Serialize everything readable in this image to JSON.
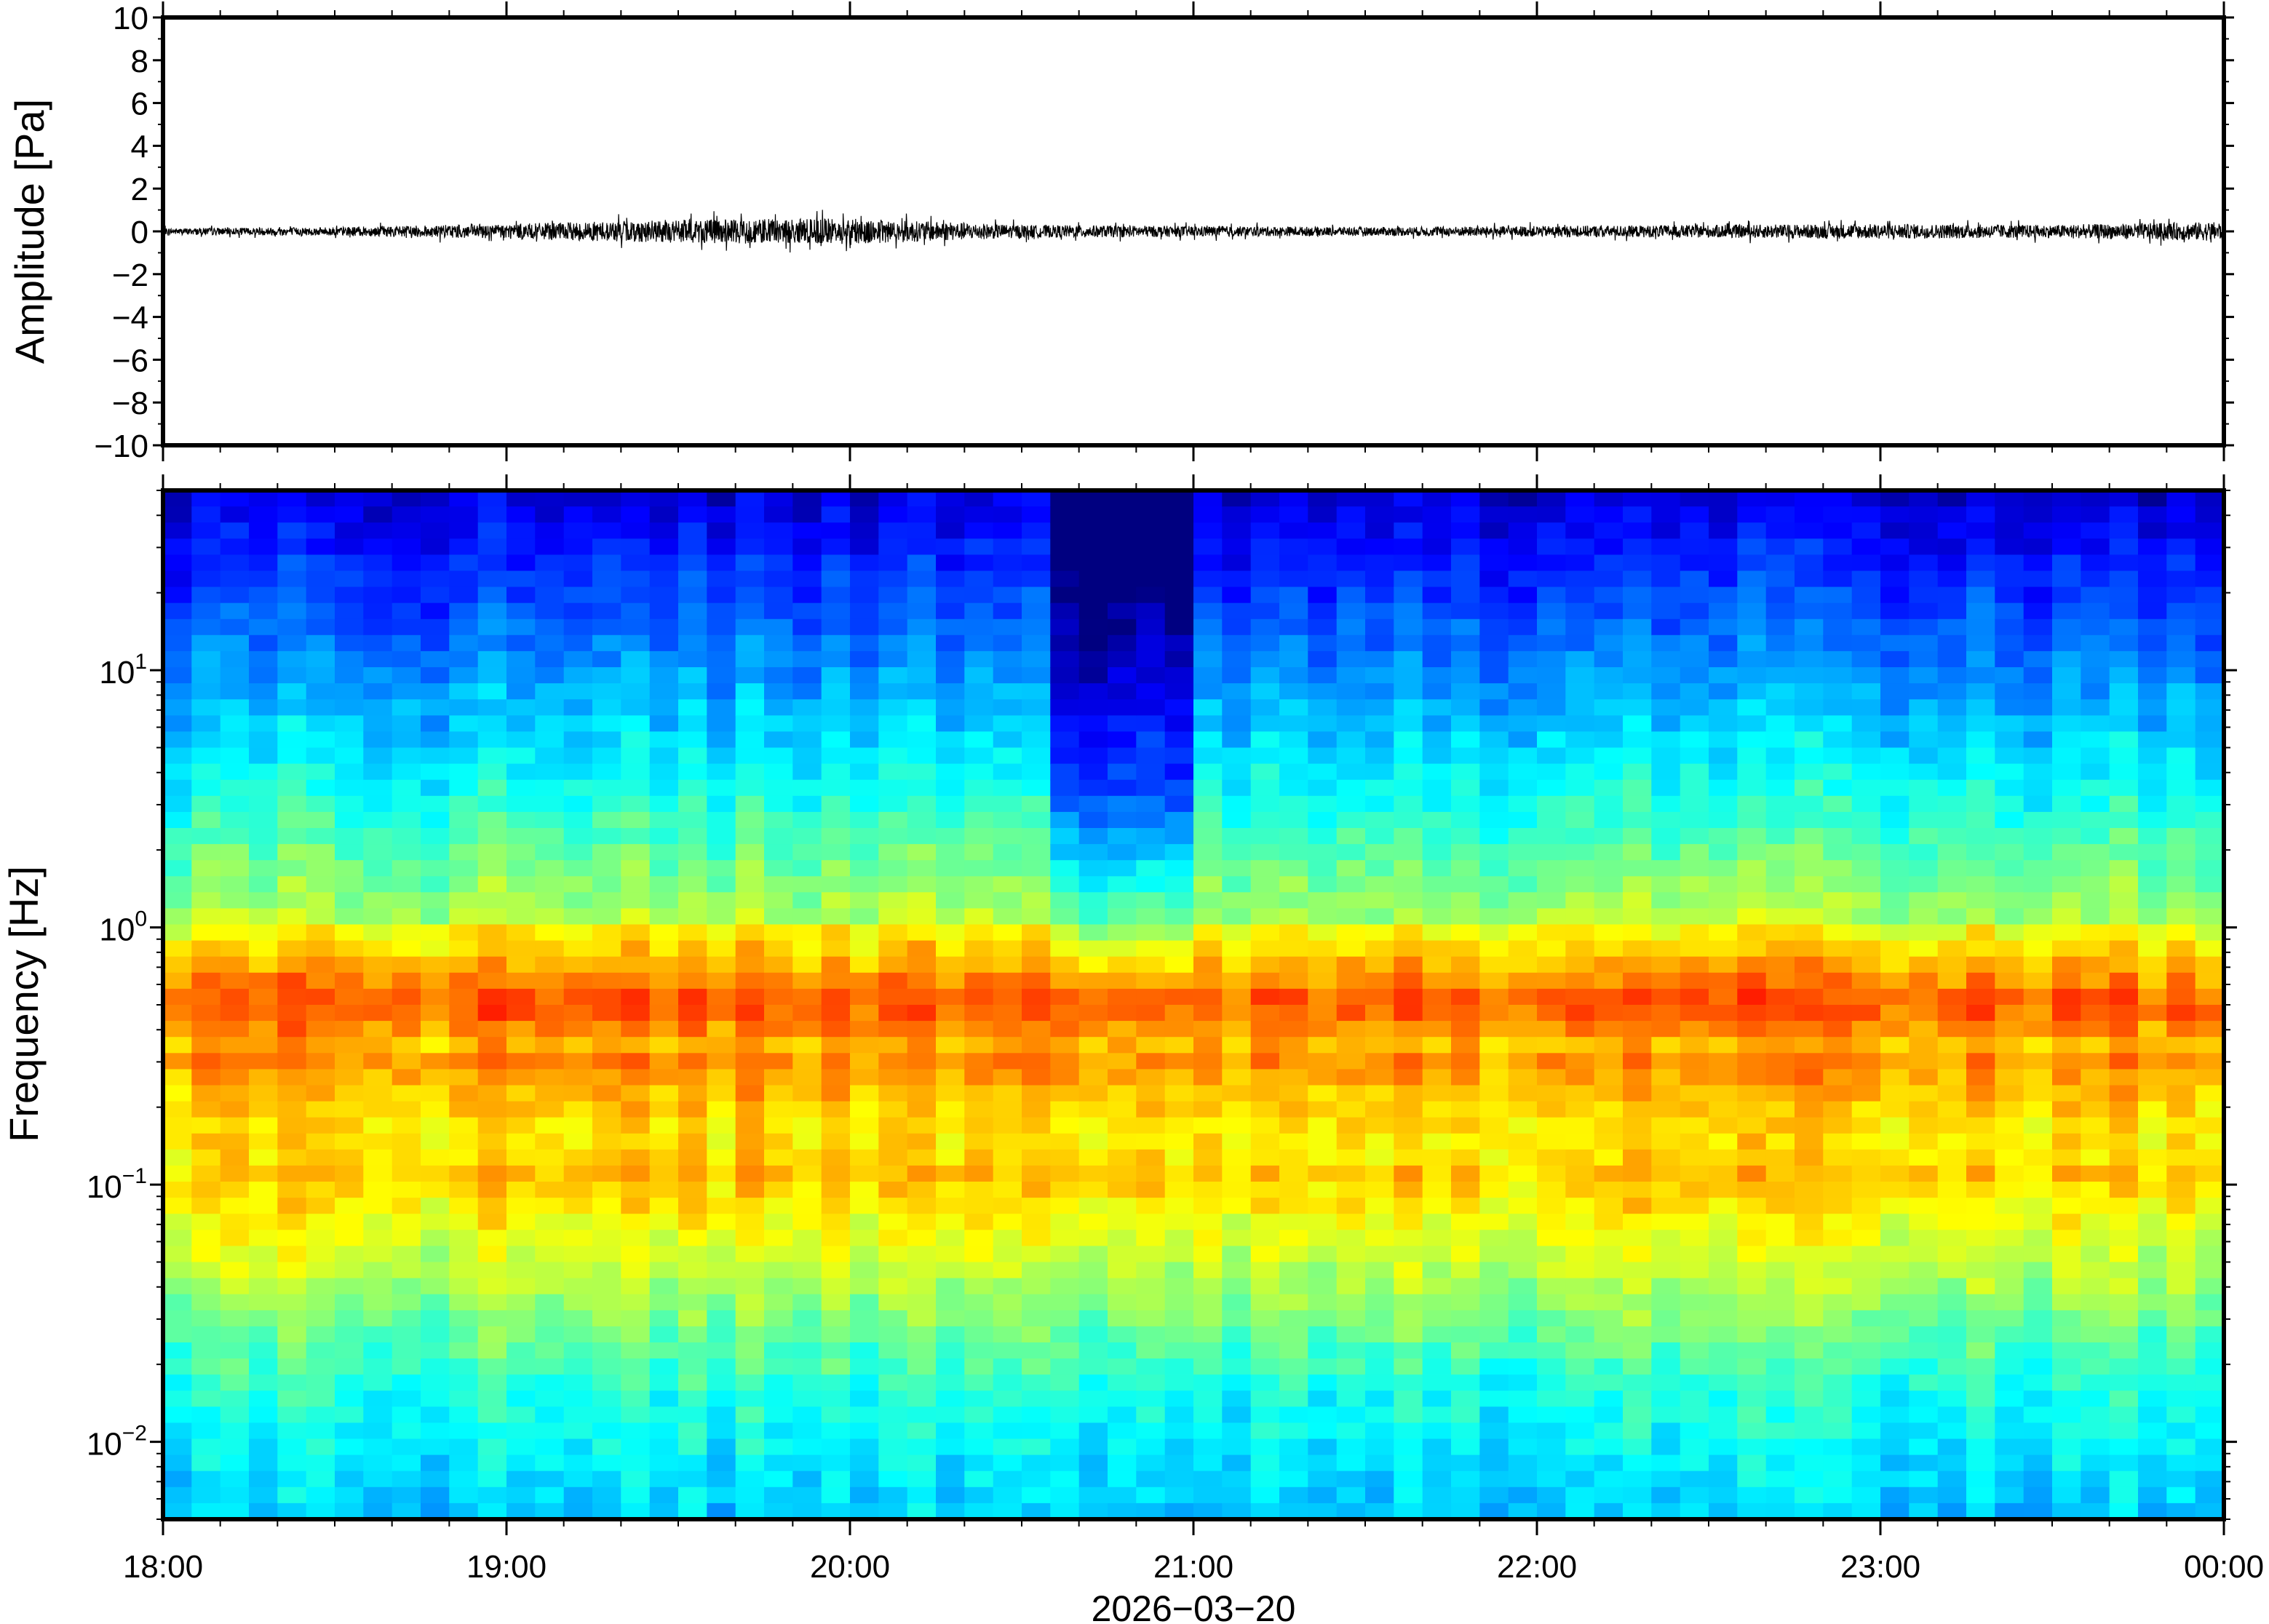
{
  "chart_data": [
    {
      "type": "line",
      "ylabel": "Amplitude [Pa]",
      "ylim": [
        -10,
        10
      ],
      "yticks": [
        10,
        8,
        6,
        4,
        2,
        0,
        -2,
        -4,
        -6,
        -8,
        -10
      ],
      "ytick_labels": [
        "10",
        "8",
        "6",
        "4",
        "2",
        "0",
        "−2",
        "−4",
        "−6",
        "−8",
        "−10"
      ],
      "x_range": [
        "18:00",
        "00:00"
      ],
      "grid": false,
      "series": [
        {
          "color": "#000000",
          "noise_envelope_hourly": [
            0.15,
            0.2,
            0.35,
            0.55,
            0.6,
            0.3,
            0.25,
            0.2,
            0.25,
            0.3,
            0.35,
            0.3,
            0.45
          ]
        }
      ]
    },
    {
      "type": "heatmap",
      "ylabel": "Frequency [Hz]",
      "yscale": "log",
      "ylim": [
        0.005,
        50
      ],
      "yticks": [
        0.01,
        0.1,
        1,
        10
      ],
      "ytick_labels": [
        {
          "base": "10",
          "exp": "−2"
        },
        {
          "base": "10",
          "exp": "−1"
        },
        {
          "base": "10",
          "exp": "0"
        },
        {
          "base": "10",
          "exp": "1"
        }
      ],
      "xlabel": "2026−03−20",
      "xticks": [
        "18:00",
        "19:00",
        "20:00",
        "21:00",
        "22:00",
        "23:00",
        "00:00"
      ],
      "grid": false,
      "colormap": "jet",
      "colors": [
        "#00007f",
        "#0000ff",
        "#007fff",
        "#00ffff",
        "#7fff7f",
        "#ffff00",
        "#ff7f00",
        "#ff0000",
        "#7f0000"
      ]
    }
  ]
}
